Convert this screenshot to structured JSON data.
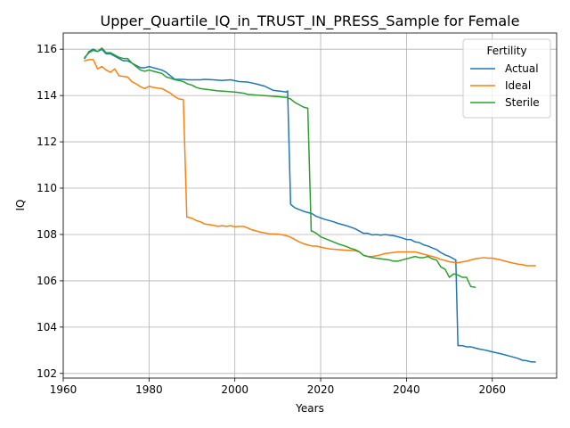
{
  "chart_data": {
    "type": "line",
    "title": "Upper_Quartile_IQ_in_TRUST_IN_PRESS_Sample for Female",
    "xlabel": "Years",
    "ylabel": "IQ",
    "xlim": [
      1960,
      2075
    ],
    "ylim": [
      101.8,
      116.7
    ],
    "xticks": [
      1960,
      1980,
      2000,
      2020,
      2040,
      2060
    ],
    "yticks": [
      102,
      104,
      106,
      108,
      110,
      112,
      114,
      116
    ],
    "grid": true,
    "legend": {
      "title": "Fertility",
      "placement": "top-right"
    },
    "series": [
      {
        "name": "Actual",
        "color": "#1f77b4",
        "points": [
          [
            1965,
            115.6
          ],
          [
            1966,
            115.9
          ],
          [
            1967,
            116.0
          ],
          [
            1968,
            115.9
          ],
          [
            1969,
            116.0
          ],
          [
            1970,
            115.8
          ],
          [
            1971,
            115.8
          ],
          [
            1972,
            115.7
          ],
          [
            1973,
            115.6
          ],
          [
            1974,
            115.5
          ],
          [
            1975,
            115.5
          ],
          [
            1976,
            115.4
          ],
          [
            1977,
            115.3
          ],
          [
            1978,
            115.2
          ],
          [
            1979,
            115.2
          ],
          [
            1980,
            115.25
          ],
          [
            1981,
            115.2
          ],
          [
            1982,
            115.15
          ],
          [
            1983,
            115.1
          ],
          [
            1984,
            115.0
          ],
          [
            1985,
            114.85
          ],
          [
            1986,
            114.7
          ],
          [
            1987,
            114.7
          ],
          [
            1988,
            114.7
          ],
          [
            1989,
            114.68
          ],
          [
            1990,
            114.68
          ],
          [
            1992,
            114.68
          ],
          [
            1993,
            114.7
          ],
          [
            1995,
            114.68
          ],
          [
            1997,
            114.65
          ],
          [
            1999,
            114.68
          ],
          [
            2001,
            114.6
          ],
          [
            2003,
            114.58
          ],
          [
            2005,
            114.5
          ],
          [
            2007,
            114.4
          ],
          [
            2009,
            114.22
          ],
          [
            2011,
            114.18
          ],
          [
            2012,
            114.15
          ],
          [
            2012.3,
            114.2
          ],
          [
            2013,
            109.3
          ],
          [
            2014,
            109.15
          ],
          [
            2016,
            109.0
          ],
          [
            2018,
            108.9
          ],
          [
            2019,
            108.78
          ],
          [
            2021,
            108.65
          ],
          [
            2023,
            108.55
          ],
          [
            2024,
            108.48
          ],
          [
            2026,
            108.38
          ],
          [
            2028,
            108.25
          ],
          [
            2029,
            108.15
          ],
          [
            2030,
            108.05
          ],
          [
            2031,
            108.05
          ],
          [
            2032,
            107.98
          ],
          [
            2033,
            108.0
          ],
          [
            2034,
            107.97
          ],
          [
            2035,
            108.0
          ],
          [
            2036,
            107.97
          ],
          [
            2037,
            107.95
          ],
          [
            2038,
            107.9
          ],
          [
            2039,
            107.85
          ],
          [
            2040,
            107.78
          ],
          [
            2041,
            107.78
          ],
          [
            2042,
            107.68
          ],
          [
            2043,
            107.65
          ],
          [
            2044,
            107.55
          ],
          [
            2045,
            107.5
          ],
          [
            2046,
            107.42
          ],
          [
            2047,
            107.35
          ],
          [
            2048,
            107.22
          ],
          [
            2049,
            107.12
          ],
          [
            2050,
            107.05
          ],
          [
            2051,
            106.95
          ],
          [
            2051.5,
            106.9
          ],
          [
            2052,
            103.2
          ],
          [
            2053,
            103.2
          ],
          [
            2054,
            103.15
          ],
          [
            2055,
            103.15
          ],
          [
            2056,
            103.1
          ],
          [
            2057,
            103.05
          ],
          [
            2058,
            103.02
          ],
          [
            2059,
            102.98
          ],
          [
            2060,
            102.93
          ],
          [
            2062,
            102.85
          ],
          [
            2064,
            102.75
          ],
          [
            2066,
            102.65
          ],
          [
            2067,
            102.57
          ],
          [
            2068,
            102.55
          ],
          [
            2069,
            102.5
          ],
          [
            2070,
            102.5
          ]
        ]
      },
      {
        "name": "Ideal",
        "color": "#ff7f0e",
        "points": [
          [
            1965,
            115.5
          ],
          [
            1966,
            115.55
          ],
          [
            1967,
            115.55
          ],
          [
            1968,
            115.15
          ],
          [
            1969,
            115.25
          ],
          [
            1970,
            115.1
          ],
          [
            1971,
            115.0
          ],
          [
            1972,
            115.15
          ],
          [
            1973,
            114.85
          ],
          [
            1975,
            114.8
          ],
          [
            1976,
            114.6
          ],
          [
            1977,
            114.5
          ],
          [
            1978,
            114.38
          ],
          [
            1979,
            114.3
          ],
          [
            1980,
            114.4
          ],
          [
            1981,
            114.35
          ],
          [
            1982,
            114.32
          ],
          [
            1983,
            114.3
          ],
          [
            1984,
            114.2
          ],
          [
            1985,
            114.1
          ],
          [
            1986,
            113.95
          ],
          [
            1987,
            113.85
          ],
          [
            1988,
            113.82
          ],
          [
            1988.8,
            108.75
          ],
          [
            1989,
            108.75
          ],
          [
            1990,
            108.7
          ],
          [
            1991,
            108.6
          ],
          [
            1992,
            108.55
          ],
          [
            1993,
            108.45
          ],
          [
            1995,
            108.4
          ],
          [
            1996,
            108.35
          ],
          [
            1997,
            108.38
          ],
          [
            1998,
            108.35
          ],
          [
            1999,
            108.38
          ],
          [
            2000,
            108.33
          ],
          [
            2001,
            108.35
          ],
          [
            2002,
            108.35
          ],
          [
            2003,
            108.28
          ],
          [
            2004,
            108.2
          ],
          [
            2006,
            108.1
          ],
          [
            2008,
            108.03
          ],
          [
            2010,
            108.02
          ],
          [
            2012,
            107.95
          ],
          [
            2013,
            107.88
          ],
          [
            2014,
            107.78
          ],
          [
            2015,
            107.68
          ],
          [
            2016,
            107.6
          ],
          [
            2017,
            107.55
          ],
          [
            2018,
            107.5
          ],
          [
            2019,
            107.5
          ],
          [
            2020,
            107.45
          ],
          [
            2022,
            107.38
          ],
          [
            2024,
            107.35
          ],
          [
            2026,
            107.32
          ],
          [
            2028,
            107.3
          ],
          [
            2029,
            107.25
          ],
          [
            2030,
            107.1
          ],
          [
            2031,
            107.05
          ],
          [
            2032,
            107.05
          ],
          [
            2033,
            107.08
          ],
          [
            2034,
            107.12
          ],
          [
            2035,
            107.18
          ],
          [
            2036,
            107.2
          ],
          [
            2038,
            107.25
          ],
          [
            2040,
            107.25
          ],
          [
            2042,
            107.25
          ],
          [
            2043,
            107.2
          ],
          [
            2044,
            107.15
          ],
          [
            2045,
            107.1
          ],
          [
            2046,
            107.05
          ],
          [
            2047,
            107.0
          ],
          [
            2048,
            106.92
          ],
          [
            2049,
            106.88
          ],
          [
            2050,
            106.82
          ],
          [
            2052,
            106.78
          ],
          [
            2054,
            106.85
          ],
          [
            2056,
            106.95
          ],
          [
            2058,
            107.0
          ],
          [
            2059,
            106.98
          ],
          [
            2060,
            106.98
          ],
          [
            2062,
            106.9
          ],
          [
            2064,
            106.8
          ],
          [
            2066,
            106.72
          ],
          [
            2067,
            106.7
          ],
          [
            2068,
            106.65
          ],
          [
            2070,
            106.65
          ]
        ]
      },
      {
        "name": "Sterile",
        "color": "#2ca02c",
        "points": [
          [
            1965,
            115.65
          ],
          [
            1966,
            115.85
          ],
          [
            1967,
            115.95
          ],
          [
            1968,
            115.9
          ],
          [
            1969,
            116.05
          ],
          [
            1970,
            115.85
          ],
          [
            1971,
            115.85
          ],
          [
            1972,
            115.75
          ],
          [
            1973,
            115.65
          ],
          [
            1974,
            115.6
          ],
          [
            1975,
            115.6
          ],
          [
            1976,
            115.4
          ],
          [
            1977,
            115.25
          ],
          [
            1978,
            115.1
          ],
          [
            1979,
            115.05
          ],
          [
            1980,
            115.1
          ],
          [
            1981,
            115.05
          ],
          [
            1982,
            115.0
          ],
          [
            1983,
            114.95
          ],
          [
            1984,
            114.8
          ],
          [
            1985,
            114.75
          ],
          [
            1986,
            114.68
          ],
          [
            1987,
            114.65
          ],
          [
            1988,
            114.6
          ],
          [
            1989,
            114.5
          ],
          [
            1990,
            114.45
          ],
          [
            1991,
            114.35
          ],
          [
            1992,
            114.3
          ],
          [
            1994,
            114.25
          ],
          [
            1996,
            114.2
          ],
          [
            1998,
            114.18
          ],
          [
            2000,
            114.15
          ],
          [
            2002,
            114.1
          ],
          [
            2003,
            114.05
          ],
          [
            2005,
            114.02
          ],
          [
            2008,
            113.98
          ],
          [
            2010,
            113.95
          ],
          [
            2012,
            113.92
          ],
          [
            2013,
            113.85
          ],
          [
            2014,
            113.7
          ],
          [
            2015,
            113.6
          ],
          [
            2016,
            113.5
          ],
          [
            2017,
            113.45
          ],
          [
            2017.8,
            108.15
          ],
          [
            2018,
            108.15
          ],
          [
            2019,
            108.05
          ],
          [
            2020,
            107.9
          ],
          [
            2022,
            107.75
          ],
          [
            2024,
            107.6
          ],
          [
            2026,
            107.48
          ],
          [
            2027,
            107.4
          ],
          [
            2028,
            107.35
          ],
          [
            2029,
            107.25
          ],
          [
            2030,
            107.1
          ],
          [
            2031,
            107.05
          ],
          [
            2032,
            107.0
          ],
          [
            2034,
            106.95
          ],
          [
            2036,
            106.9
          ],
          [
            2037,
            106.85
          ],
          [
            2038,
            106.85
          ],
          [
            2039,
            106.9
          ],
          [
            2040,
            106.95
          ],
          [
            2041,
            107.0
          ],
          [
            2042,
            107.05
          ],
          [
            2043,
            107.0
          ],
          [
            2044,
            107.0
          ],
          [
            2045,
            107.05
          ],
          [
            2046,
            106.95
          ],
          [
            2047,
            106.9
          ],
          [
            2048,
            106.6
          ],
          [
            2049,
            106.5
          ],
          [
            2050,
            106.15
          ],
          [
            2051,
            106.3
          ],
          [
            2052,
            106.25
          ],
          [
            2053,
            106.15
          ],
          [
            2054,
            106.15
          ],
          [
            2055,
            105.75
          ],
          [
            2056,
            105.72
          ]
        ]
      }
    ]
  }
}
